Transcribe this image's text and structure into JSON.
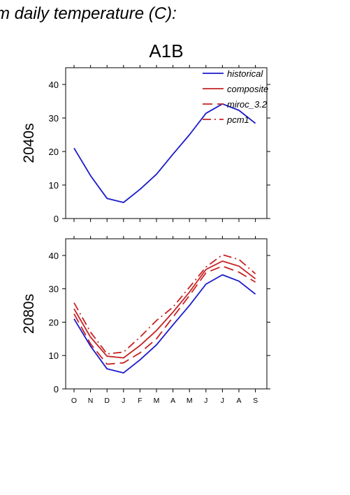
{
  "header": {
    "supertitle": "m daily temperature (C):",
    "scenario": "A1B"
  },
  "legend": [
    {
      "name": "historical",
      "color": "#1a1acc",
      "dash": "solid"
    },
    {
      "name": "composite",
      "color": "#c62323",
      "dash": "solid"
    },
    {
      "name": "miroc_3.2",
      "color": "#c62323",
      "dash": "dashed"
    },
    {
      "name": "pcm1",
      "color": "#c62323",
      "dash": "dashdot"
    }
  ],
  "chart_data": [
    {
      "type": "line",
      "row_label": "2040s",
      "categories": [
        "O",
        "N",
        "D",
        "J",
        "F",
        "M",
        "A",
        "M",
        "J",
        "J",
        "A",
        "S"
      ],
      "ylim": [
        0,
        45
      ],
      "yticks": [
        0,
        10,
        20,
        30,
        40
      ],
      "series": [
        {
          "name": "historical",
          "values": [
            21,
            12.8,
            6,
            4.8,
            8.7,
            13.2,
            19.2,
            25,
            31.4,
            34.2,
            32.3,
            28.4
          ]
        }
      ]
    },
    {
      "type": "line",
      "row_label": "2080s",
      "categories": [
        "O",
        "N",
        "D",
        "J",
        "F",
        "M",
        "A",
        "M",
        "J",
        "J",
        "A",
        "S"
      ],
      "ylim": [
        0,
        45
      ],
      "yticks": [
        0,
        10,
        20,
        30,
        40
      ],
      "series": [
        {
          "name": "historical",
          "values": [
            21,
            12.8,
            6,
            4.8,
            8.7,
            13.2,
            19.2,
            25,
            31.4,
            34.2,
            32.3,
            28.4
          ]
        },
        {
          "name": "composite",
          "values": [
            24,
            15.5,
            9.8,
            9.3,
            13,
            17.5,
            23,
            29,
            35.8,
            38.3,
            36.8,
            33
          ]
        },
        {
          "name": "miroc_3.2",
          "values": [
            22.5,
            13.5,
            7.4,
            7.8,
            10.8,
            15,
            21.5,
            28,
            34.8,
            36.8,
            35,
            32
          ]
        },
        {
          "name": "pcm1",
          "values": [
            25.8,
            17,
            10.5,
            11,
            15.5,
            20.5,
            24.5,
            30.5,
            36.5,
            40.2,
            38.8,
            34.5
          ]
        }
      ]
    }
  ]
}
